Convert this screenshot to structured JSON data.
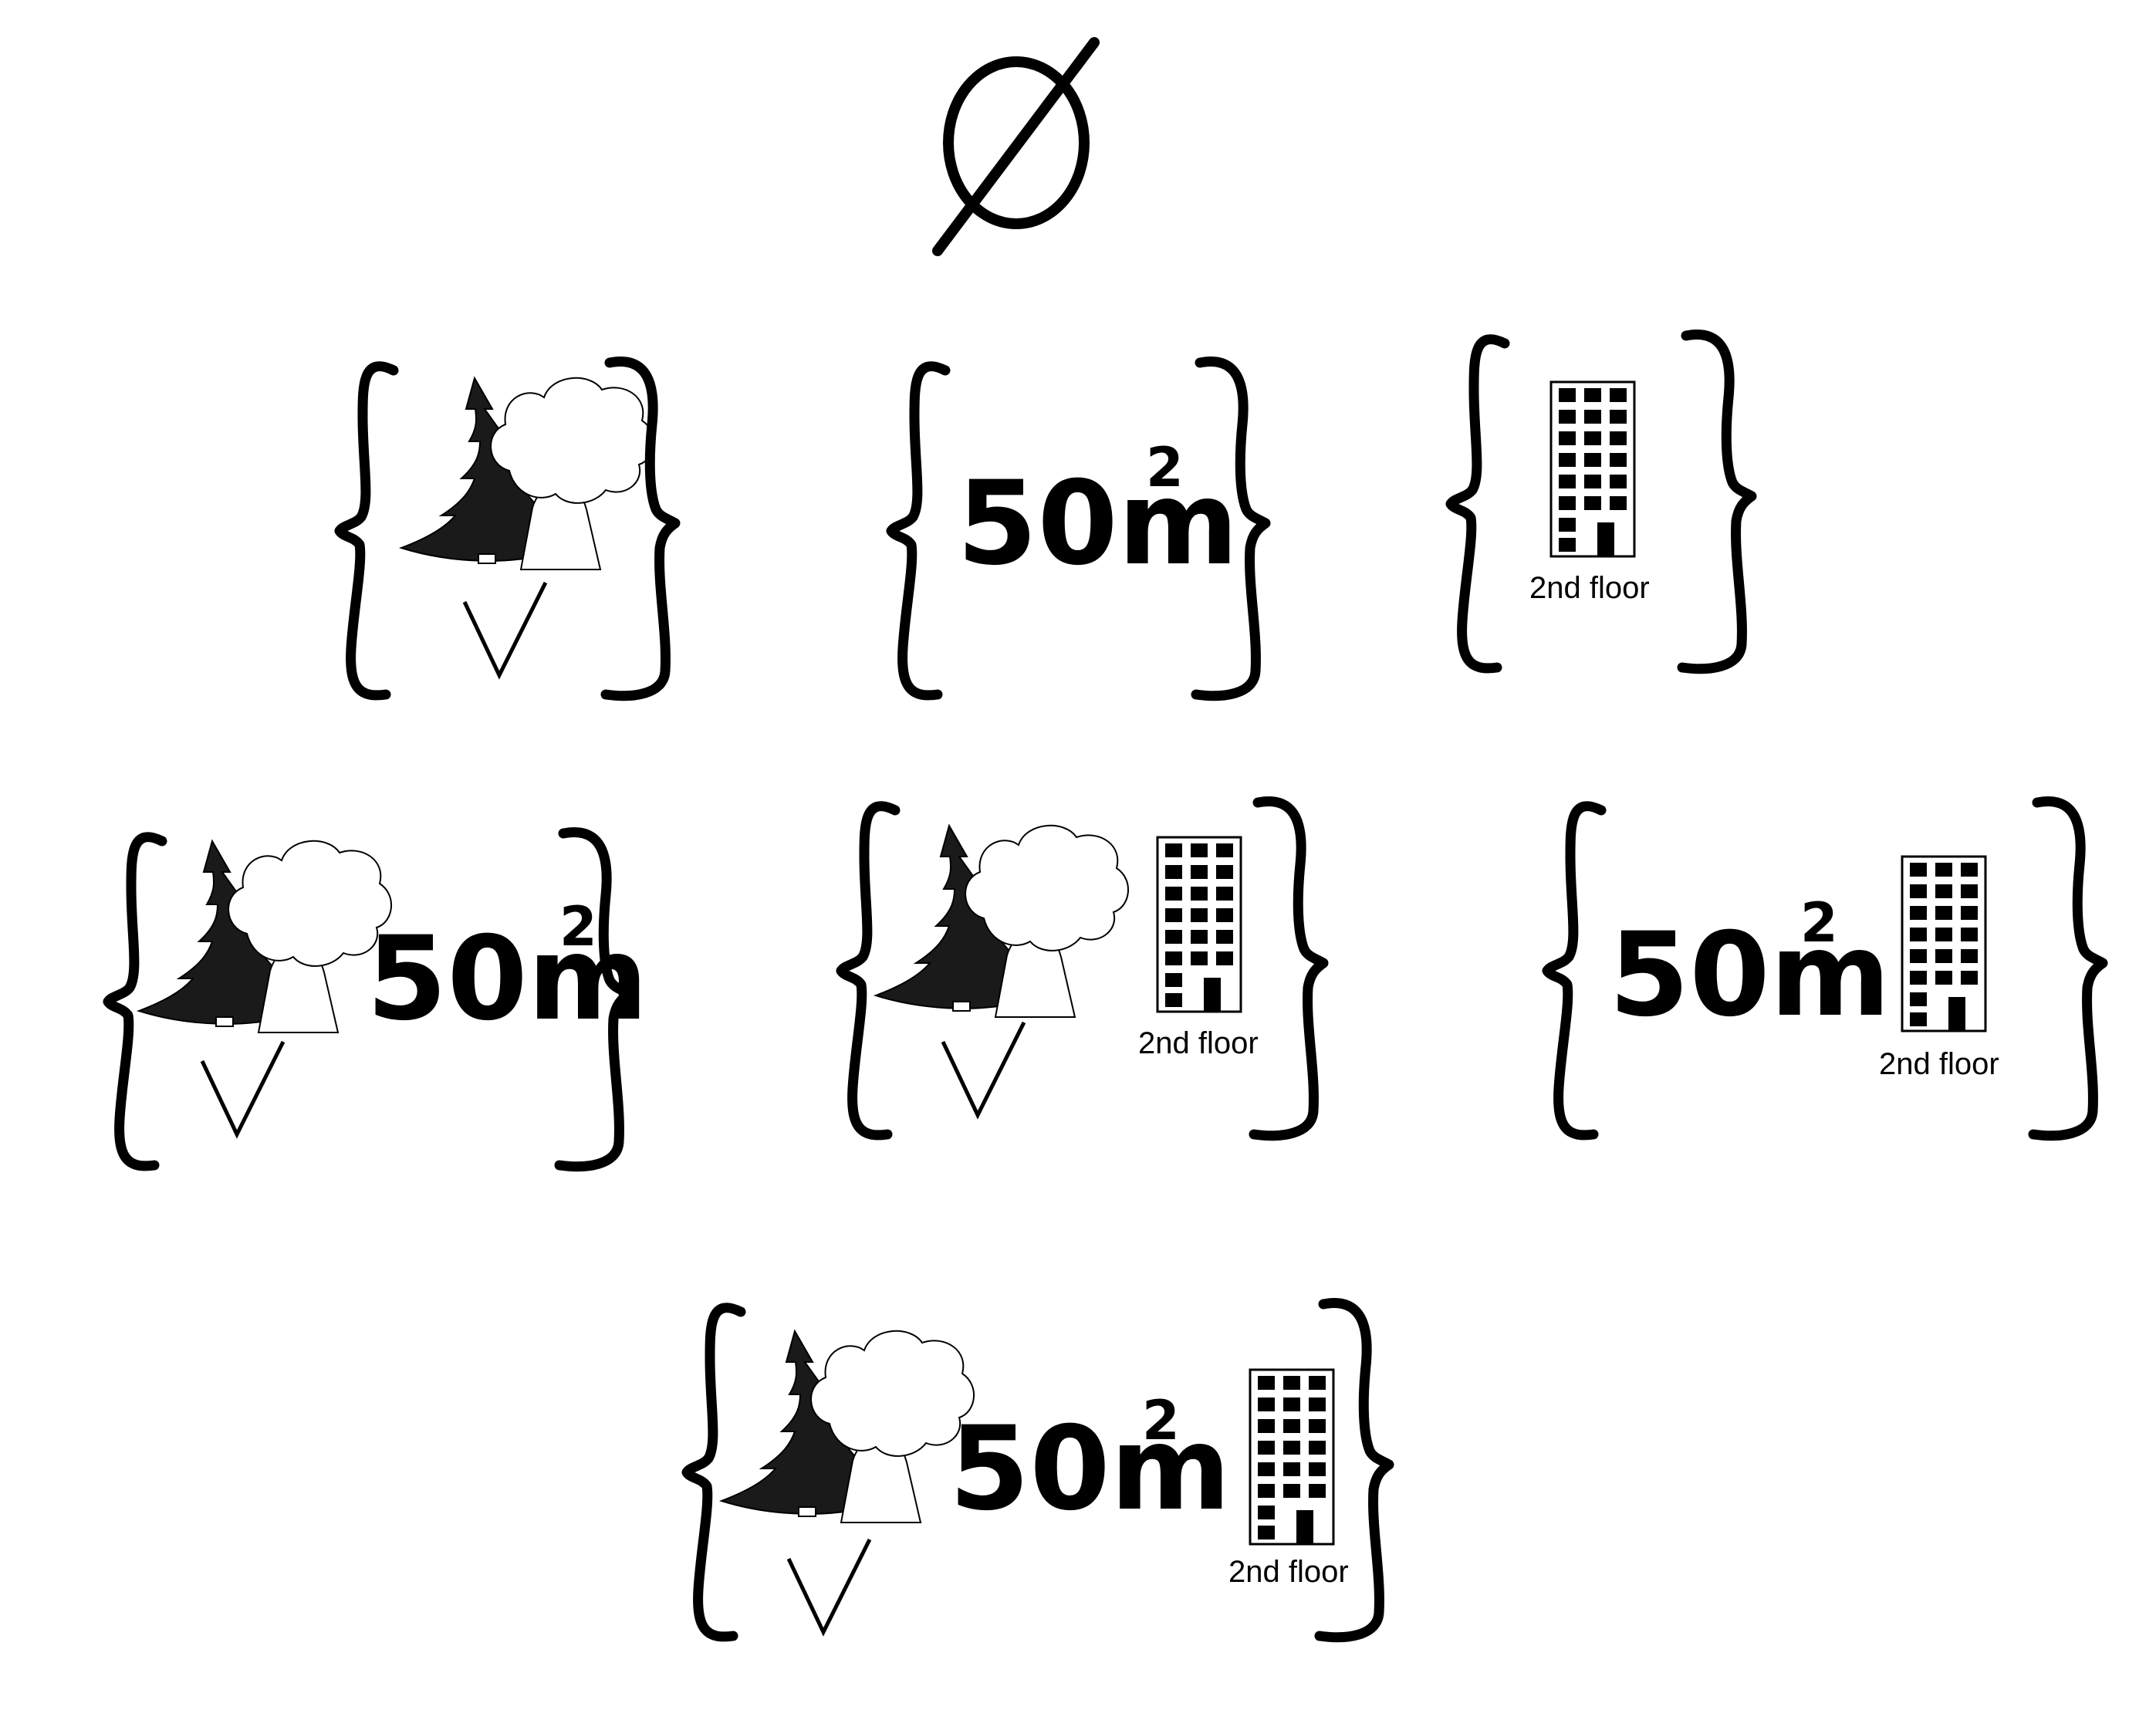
{
  "diagram": {
    "empty_set_symbol": "∅",
    "element_icons": {
      "trees": "forest-trees-icon",
      "checkmark": "checkmark-icon",
      "building": "apartment-building-icon"
    },
    "area_label": "50m",
    "area_exponent": "2",
    "floor_label": "2nd floor",
    "sets": [
      {
        "id": "trees",
        "elements": [
          "trees"
        ]
      },
      {
        "id": "area",
        "elements": [
          "area"
        ]
      },
      {
        "id": "floor",
        "elements": [
          "floor"
        ]
      },
      {
        "id": "trees-area",
        "elements": [
          "trees",
          "area"
        ]
      },
      {
        "id": "trees-floor",
        "elements": [
          "trees",
          "floor"
        ]
      },
      {
        "id": "area-floor",
        "elements": [
          "area",
          "floor"
        ]
      },
      {
        "id": "trees-area-floor",
        "elements": [
          "trees",
          "area",
          "floor"
        ]
      }
    ]
  }
}
